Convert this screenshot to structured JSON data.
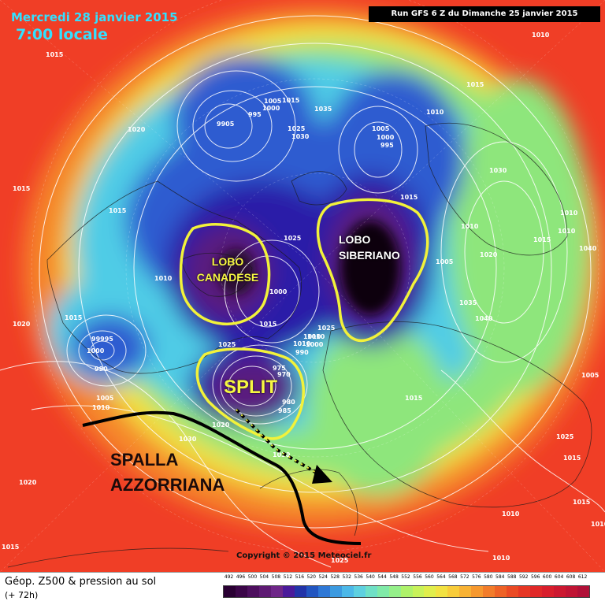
{
  "header": {
    "date": "Mercredi 28 janvier 2015",
    "local_time": "7:00 locale",
    "run_info": "Run GFS 6 Z du Dimanche 25 janvier 2015"
  },
  "annotations": {
    "lobo_canadese": "LOBO CANADESE",
    "lobo_siberiano": "LOBO SIBERIANO",
    "split": "SPLIT",
    "spalla": "SPALLA AZZORRIANA"
  },
  "pressure_labels": [
    "1010",
    "1015",
    "1020",
    "9905",
    "995",
    "1000",
    "1005",
    "1015",
    "1035",
    "1025",
    "1030",
    "1005",
    "1000",
    "995",
    "1010",
    "1015",
    "1015",
    "1030",
    "1010",
    "1015",
    "1010",
    "1005",
    "1025",
    "1020",
    "1040",
    "1015",
    "1015",
    "1010",
    "1000",
    "1015",
    "1010",
    "1025",
    "1035",
    "1040",
    "1020",
    "1015",
    "1000",
    "99995",
    "990",
    "1025",
    "1010",
    "1010",
    "1000",
    "990",
    "975",
    "970",
    "980",
    "985",
    "1015",
    "1005",
    "1010",
    "1030",
    "1020",
    "1030",
    "1020",
    "1025",
    "1010",
    "1015",
    "1010",
    "1005",
    "1015",
    "1010",
    "1025",
    "1015",
    "1010"
  ],
  "copyright": "Copyright © 2015 Meteociel.fr",
  "legend": {
    "title": "Géop. Z500 & pression au sol",
    "subtitle": "(+ 72h)",
    "scale_values": [
      "492",
      "496",
      "500",
      "504",
      "508",
      "512",
      "516",
      "520",
      "524",
      "528",
      "532",
      "536",
      "540",
      "544",
      "548",
      "552",
      "556",
      "560",
      "564",
      "568",
      "572",
      "576",
      "580",
      "584",
      "588",
      "592",
      "596",
      "600",
      "604",
      "608",
      "612"
    ],
    "scale_colors": [
      "#2a0033",
      "#3b0648",
      "#4d0f5e",
      "#5e1a73",
      "#6e2688",
      "#4a1a9a",
      "#2233a8",
      "#2255c0",
      "#2e78d6",
      "#3c9ae0",
      "#4cb8e8",
      "#5ed0e0",
      "#6fe0c6",
      "#80eaa8",
      "#95f08a",
      "#aef26a",
      "#c8f25a",
      "#e0ee4c",
      "#f2e242",
      "#f8cc3a",
      "#f8b234",
      "#f6982e",
      "#f27c2a",
      "#ee6226",
      "#ea4a24",
      "#e63624",
      "#e02828",
      "#d81e2c",
      "#cc1830",
      "#c01434",
      "#b01038"
    ]
  },
  "map_colors": {
    "outer": "#f03e26",
    "orange": "#f5862c",
    "yellow": "#f2e040",
    "green": "#8ee67c",
    "cyan": "#4fcce6",
    "blue": "#2e5bd0",
    "darkblue": "#2a1aa8",
    "purple": "#5a1a7e",
    "black": "#0d0410",
    "annotation_yellow": "#f2f23a",
    "annotation_text_yellow": "#f6f642"
  }
}
